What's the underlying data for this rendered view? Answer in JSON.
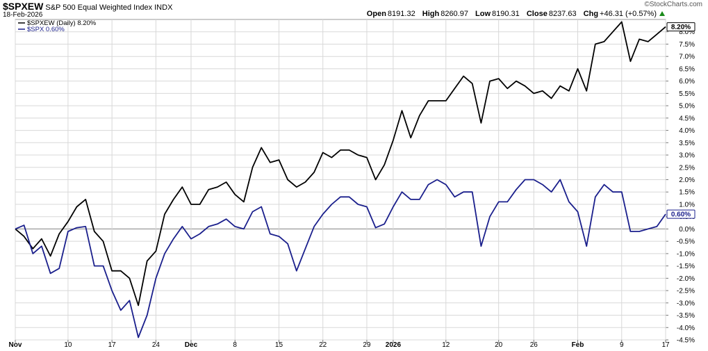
{
  "header": {
    "symbol": "$SPXEW",
    "description": "S&P 500 Equal Weighted Index INDX",
    "date": "18-Feb-2026",
    "brand": "©StockCharts.com",
    "open_label": "Open",
    "open": "8191.32",
    "high_label": "High",
    "high": "8260.97",
    "low_label": "Low",
    "low": "8190.31",
    "close_label": "Close",
    "close": "8237.63",
    "chg_label": "Chg",
    "chg": "+46.31 (+0.57%)"
  },
  "chart_data": {
    "type": "line",
    "ylim": [
      -4.5,
      8.5
    ],
    "y_ticks": [
      8.0,
      7.5,
      7.0,
      6.5,
      6.0,
      5.5,
      5.0,
      4.5,
      4.0,
      3.5,
      3.0,
      2.5,
      2.0,
      1.5,
      1.0,
      0.5,
      0.0,
      -0.5,
      -1.0,
      -1.5,
      -2.0,
      -2.5,
      -3.0,
      -3.5,
      -4.0,
      -4.5
    ],
    "y_tick_labels": [
      "8.0%",
      "7.5%",
      "7.0%",
      "6.5%",
      "6.0%",
      "5.5%",
      "5.0%",
      "4.5%",
      "4.0%",
      "3.5%",
      "3.0%",
      "2.5%",
      "2.0%",
      "1.5%",
      "1.0%",
      "0.5%",
      "0.0%",
      "-0.5%",
      "-1.0%",
      "-1.5%",
      "-2.0%",
      "-2.5%",
      "-3.0%",
      "-3.5%",
      "-4.0%",
      "-4.5%"
    ],
    "x_ticks": [
      {
        "label": "Nov",
        "index": 0,
        "bold": true
      },
      {
        "label": "10",
        "index": 6
      },
      {
        "label": "17",
        "index": 11
      },
      {
        "label": "24",
        "index": 16
      },
      {
        "label": "Dec",
        "index": 20,
        "bold": true
      },
      {
        "label": "8",
        "index": 25
      },
      {
        "label": "15",
        "index": 30
      },
      {
        "label": "22",
        "index": 35
      },
      {
        "label": "29",
        "index": 40
      },
      {
        "label": "2026",
        "index": 43,
        "bold": true
      },
      {
        "label": "12",
        "index": 49
      },
      {
        "label": "20",
        "index": 55
      },
      {
        "label": "26",
        "index": 59
      },
      {
        "label": "Feb",
        "index": 64,
        "bold": true
      },
      {
        "label": "9",
        "index": 69
      },
      {
        "label": "17",
        "index": 74
      }
    ],
    "n_points": 75,
    "series": [
      {
        "name": "$SPXEW (Daily) 8.20%",
        "color": "#000000",
        "end_label": "8.20%",
        "values": [
          0.0,
          -0.3,
          -0.8,
          -0.4,
          -1.1,
          -0.2,
          0.3,
          0.9,
          1.2,
          -0.1,
          -0.5,
          -1.7,
          -1.7,
          -2.0,
          -3.1,
          -1.3,
          -0.9,
          0.6,
          1.2,
          1.7,
          1.0,
          1.0,
          1.6,
          1.7,
          1.9,
          1.4,
          1.1,
          2.5,
          3.3,
          2.7,
          2.8,
          2.0,
          1.7,
          1.9,
          2.3,
          3.1,
          2.9,
          3.2,
          3.2,
          3.0,
          2.9,
          2.0,
          2.6,
          3.6,
          4.8,
          3.7,
          4.6,
          5.2,
          5.2,
          5.2,
          5.7,
          6.2,
          5.9,
          4.3,
          6.0,
          6.1,
          5.7,
          6.0,
          5.8,
          5.5,
          5.6,
          5.3,
          5.8,
          5.6,
          6.5,
          5.6,
          7.5,
          7.6,
          8.0,
          8.4,
          6.8,
          7.7,
          7.6,
          7.9,
          8.2
        ]
      },
      {
        "name": "$SPX 0.60%",
        "color": "#1a1f8c",
        "end_label": "0.60%",
        "values": [
          0.0,
          0.15,
          -1.0,
          -0.7,
          -1.8,
          -1.6,
          -0.1,
          0.05,
          0.1,
          -1.5,
          -1.5,
          -2.5,
          -3.3,
          -2.9,
          -4.4,
          -3.5,
          -2.0,
          -1.0,
          -0.4,
          0.1,
          -0.4,
          -0.2,
          0.1,
          0.2,
          0.4,
          0.1,
          0.0,
          0.7,
          0.9,
          -0.2,
          -0.3,
          -0.6,
          -1.7,
          -0.8,
          0.1,
          0.6,
          1.0,
          1.3,
          1.3,
          1.0,
          0.9,
          0.05,
          0.2,
          0.9,
          1.5,
          1.2,
          1.2,
          1.8,
          2.0,
          1.8,
          1.3,
          1.5,
          1.5,
          -0.7,
          0.5,
          1.1,
          1.1,
          1.6,
          2.0,
          2.0,
          1.8,
          1.5,
          2.0,
          1.1,
          0.7,
          -0.7,
          1.3,
          1.8,
          1.5,
          1.5,
          -0.1,
          -0.1,
          0.0,
          0.1,
          0.6
        ]
      }
    ]
  }
}
